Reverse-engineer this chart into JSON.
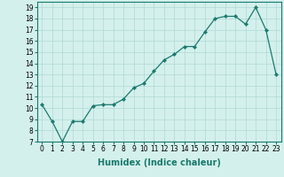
{
  "xlabel": "Humidex (Indice chaleur)",
  "ylabel": "",
  "x": [
    0,
    1,
    2,
    3,
    4,
    5,
    6,
    7,
    8,
    9,
    10,
    11,
    12,
    13,
    14,
    15,
    16,
    17,
    18,
    19,
    20,
    21,
    22,
    23
  ],
  "y": [
    10.3,
    8.8,
    7.0,
    8.8,
    8.8,
    10.2,
    10.3,
    10.3,
    10.8,
    11.8,
    12.2,
    13.3,
    14.3,
    14.8,
    15.5,
    15.5,
    16.8,
    18.0,
    18.2,
    18.2,
    17.5,
    19.0,
    17.0,
    13.0
  ],
  "line_color": "#1a7a6e",
  "marker_color": "#1a7a6e",
  "bg_color": "#d4f0ec",
  "grid_color": "#afd9d4",
  "text_color": "#000000",
  "ylim": [
    7,
    19.5
  ],
  "yticks": [
    7,
    8,
    9,
    10,
    11,
    12,
    13,
    14,
    15,
    16,
    17,
    18,
    19
  ],
  "xticks": [
    0,
    1,
    2,
    3,
    4,
    5,
    6,
    7,
    8,
    9,
    10,
    11,
    12,
    13,
    14,
    15,
    16,
    17,
    18,
    19,
    20,
    21,
    22,
    23
  ],
  "xlabel_fontsize": 7,
  "tick_fontsize": 5.5
}
